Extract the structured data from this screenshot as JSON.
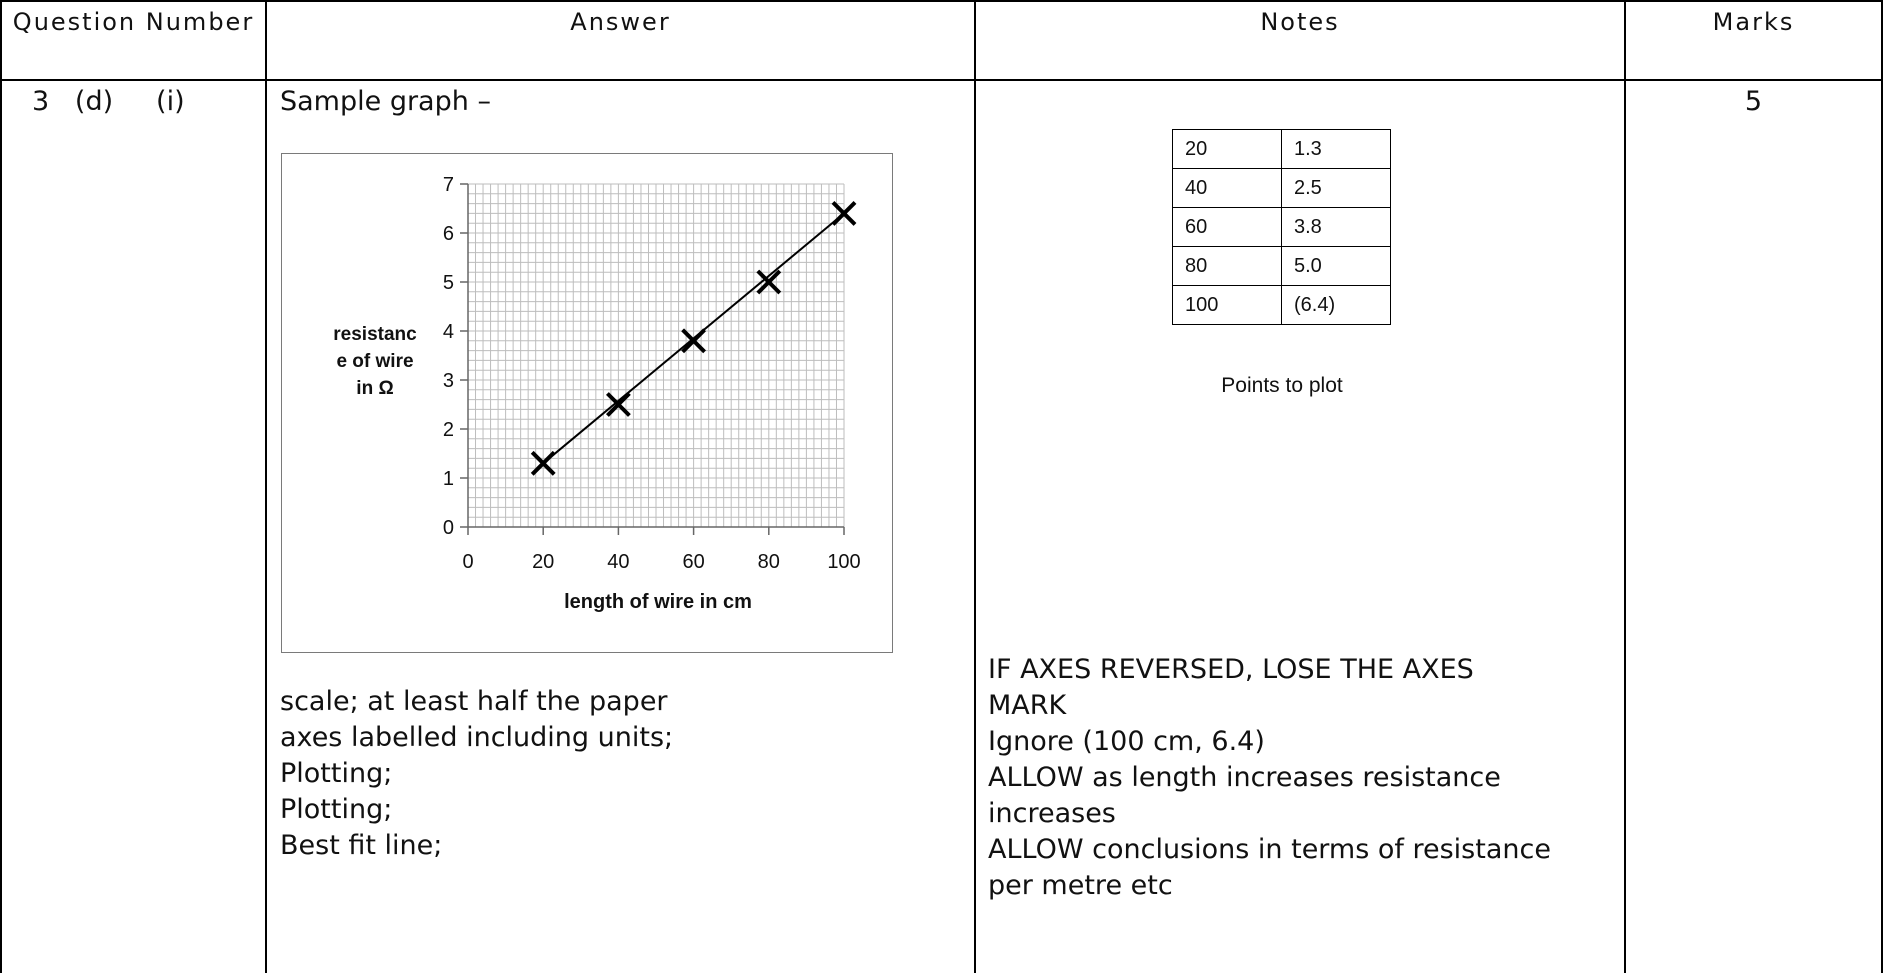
{
  "header": {
    "question_number": "Question Number",
    "answer": "Answer",
    "notes": "Notes",
    "marks": "Marks"
  },
  "row": {
    "question": "3   (d)     (i)",
    "answer_intro": "Sample graph –",
    "marks": "5",
    "answer_points": [
      "scale; at least half the paper",
      "axes labelled including units;",
      "Plotting;",
      "Plotting;",
      "Best fit line;"
    ],
    "notes_lines": [
      "IF AXES REVERSED, LOSE THE AXES",
      "MARK",
      "Ignore (100 cm, 6.4)",
      "ALLOW as length increases resistance",
      "increases",
      "ALLOW conclusions in terms of resistance",
      "per metre etc"
    ],
    "points_table": [
      [
        "20",
        "1.3"
      ],
      [
        "40",
        "2.5"
      ],
      [
        "60",
        "3.8"
      ],
      [
        "80",
        "5.0"
      ],
      [
        "100",
        "(6.4)"
      ]
    ],
    "points_caption": "Points to plot"
  },
  "chart_data": {
    "type": "scatter",
    "xlabel": "length of wire in cm",
    "ylabel": "resistanc\ne of wire\nin Ω",
    "xlim": [
      0,
      100
    ],
    "ylim": [
      0,
      7
    ],
    "xticks": [
      "0",
      "20",
      "40",
      "60",
      "80",
      "100"
    ],
    "yticks": [
      "0",
      "1",
      "2",
      "3",
      "4",
      "5",
      "6",
      "7"
    ],
    "grid": true,
    "marker": "x",
    "x": [
      20,
      40,
      60,
      80,
      100
    ],
    "y": [
      1.3,
      2.5,
      3.8,
      5.0,
      6.4
    ],
    "best_fit_line": {
      "x": [
        20,
        100
      ],
      "y": [
        1.3,
        6.4
      ]
    }
  }
}
